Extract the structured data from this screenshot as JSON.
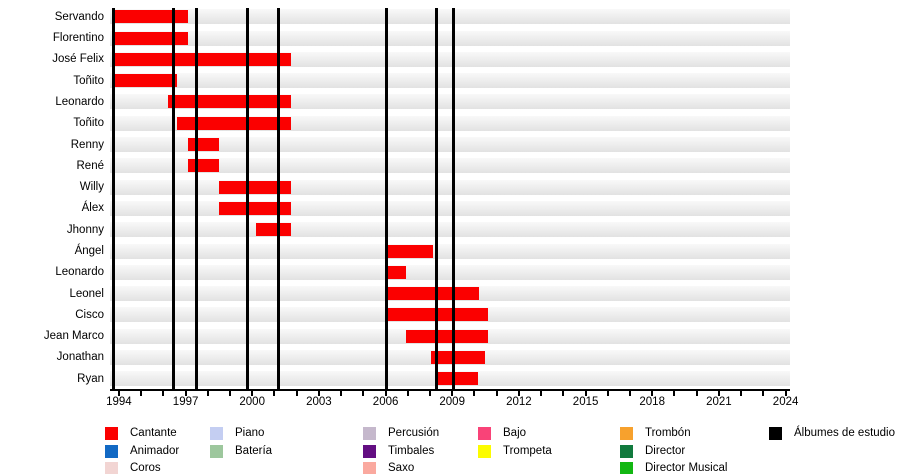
{
  "chart_data": {
    "type": "timeline",
    "x_axis": {
      "min": 1993.6,
      "max": 2024.2,
      "tick_first": 1994,
      "tick_last": 2024,
      "minor_step": 1,
      "label_step": 3
    },
    "tick_labels": [
      "1994",
      "1997",
      "2000",
      "2003",
      "2006",
      "2009",
      "2012",
      "2015",
      "2018",
      "2021",
      "2024"
    ],
    "members": [
      {
        "name": "Servando",
        "role": "Cantante",
        "start": 1993.7,
        "end": 1997.1
      },
      {
        "name": "Florentino",
        "role": "Cantante",
        "start": 1993.7,
        "end": 1997.1
      },
      {
        "name": "José Felix",
        "role": "Cantante",
        "start": 1993.7,
        "end": 2001.75
      },
      {
        "name": "Toñito",
        "role": "Cantante",
        "start": 1993.7,
        "end": 1996.6
      },
      {
        "name": "Leonardo",
        "role": "Cantante",
        "start": 1996.2,
        "end": 2001.75
      },
      {
        "name": "Toñito",
        "role": "Cantante",
        "start": 1996.6,
        "end": 2001.75
      },
      {
        "name": "Renny",
        "role": "Cantante",
        "start": 1997.1,
        "end": 1998.5
      },
      {
        "name": "René",
        "role": "Cantante",
        "start": 1997.1,
        "end": 1998.5
      },
      {
        "name": "Willy",
        "role": "Cantante",
        "start": 1998.5,
        "end": 2001.75
      },
      {
        "name": "Álex",
        "role": "Cantante",
        "start": 1998.5,
        "end": 2001.75
      },
      {
        "name": "Jhonny",
        "role": "Cantante",
        "start": 2000.15,
        "end": 2001.75
      },
      {
        "name": "Ángel",
        "role": "Cantante",
        "start": 2006.05,
        "end": 2008.15
      },
      {
        "name": "Leonardo",
        "role": "Cantante",
        "start": 2006.05,
        "end": 2006.9
      },
      {
        "name": "Leonel",
        "role": "Cantante",
        "start": 2006.05,
        "end": 2010.2
      },
      {
        "name": "Cisco",
        "role": "Cantante",
        "start": 2006.05,
        "end": 2010.6
      },
      {
        "name": "Jean Marco",
        "role": "Cantante",
        "start": 2006.9,
        "end": 2010.6
      },
      {
        "name": "Jonathan",
        "role": "Cantante",
        "start": 2008.05,
        "end": 2010.5
      },
      {
        "name": "Ryan",
        "role": "Cantante",
        "start": 2008.35,
        "end": 2010.15
      }
    ],
    "album_lines_years": [
      1993.75,
      1996.45,
      1997.5,
      1999.8,
      2001.2,
      2006.05,
      2008.3,
      2009.05
    ],
    "legend_columns": [
      {
        "items": [
          {
            "label": "Cantante",
            "color": "#fb0000"
          },
          {
            "label": "Animador",
            "color": "#1269c4"
          },
          {
            "label": "Coros",
            "color": "#f2d5d3"
          }
        ]
      },
      {
        "items": [
          {
            "label": "Piano",
            "color": "#c4cef2"
          },
          {
            "label": "Batería",
            "color": "#9dc79d"
          }
        ]
      },
      {
        "items": [
          {
            "label": "Percusión",
            "color": "#c5b8cc"
          },
          {
            "label": "Timbales",
            "color": "#630e82"
          },
          {
            "label": "Saxo",
            "color": "#faa99f"
          }
        ]
      },
      {
        "items": [
          {
            "label": "Bajo",
            "color": "#f94378"
          },
          {
            "label": "Trompeta",
            "color": "#fcfc00"
          }
        ]
      },
      {
        "items": [
          {
            "label": "Trombón",
            "color": "#f7a12d"
          },
          {
            "label": "Director",
            "color": "#117a3d"
          },
          {
            "label": "Director Musical",
            "color": "#12b712"
          }
        ]
      },
      {
        "items": [
          {
            "label": "Álbumes de estudio",
            "color": "#000000"
          }
        ]
      }
    ],
    "colors": {
      "cantante_bar": "#fb0000",
      "album_line": "#000000",
      "row_stripe": "#e8e8e8",
      "axis": "#000000",
      "background": "#ffffff"
    }
  }
}
